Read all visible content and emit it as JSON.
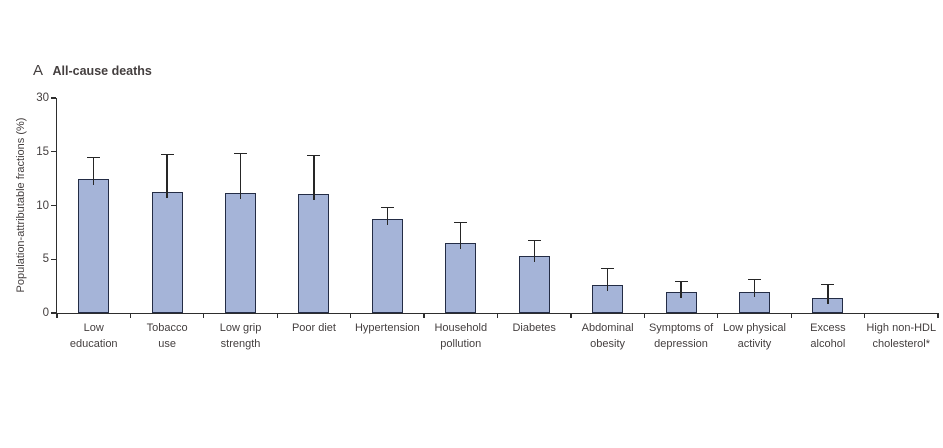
{
  "figure": {
    "panel_letter": "A",
    "panel_title": "All-cause deaths"
  },
  "chart_data": {
    "type": "bar",
    "title": "All-cause deaths",
    "xlabel": "",
    "ylabel": "Population-attributable fractions (%)",
    "y_ticks": [
      0,
      5,
      10,
      15,
      30
    ],
    "y_axis_break": {
      "linear_max": 15,
      "top_value": 30,
      "note": "segment 15-30 compressed to same length as one 5-unit segment"
    },
    "grid": false,
    "legend": null,
    "categories": [
      "Low education",
      "Tobacco use",
      "Low grip strength",
      "Poor diet",
      "Hypertension",
      "Household pollution",
      "Diabetes",
      "Abdominal obesity",
      "Symptoms of depression",
      "Low physical activity",
      "Excess alcohol",
      "High non-HDL cholesterol*"
    ],
    "category_label_lines": [
      [
        "Low",
        "education"
      ],
      [
        "Tobacco",
        "use"
      ],
      [
        "Low grip",
        "strength"
      ],
      [
        "Poor diet"
      ],
      [
        "Hypertension"
      ],
      [
        "Household",
        "pollution"
      ],
      [
        "Diabetes"
      ],
      [
        "Abdominal",
        "obesity"
      ],
      [
        "Symptoms of",
        "depression"
      ],
      [
        "Low physical",
        "activity"
      ],
      [
        "Excess",
        "alcohol"
      ],
      [
        "High non-HDL",
        "cholesterol*"
      ]
    ],
    "values": [
      12.5,
      11.3,
      11.2,
      11.1,
      8.7,
      6.5,
      5.3,
      2.6,
      2.0,
      2.0,
      1.4,
      0
    ],
    "upper_ci": [
      14.5,
      14.8,
      14.9,
      14.7,
      9.9,
      8.5,
      6.8,
      4.2,
      3.0,
      3.2,
      2.7,
      null
    ],
    "colors": {
      "bar_fill": "#a5b4d8",
      "bar_border": "#232c45",
      "axis": "#2e2e2e",
      "error_bar": "#262626",
      "text": "#443f3f"
    }
  }
}
